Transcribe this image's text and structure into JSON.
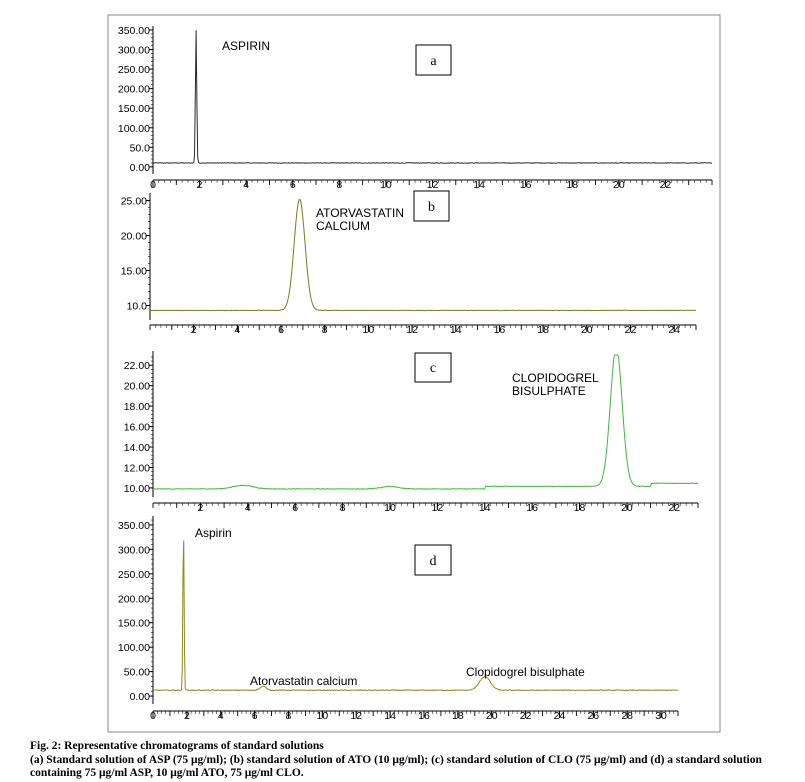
{
  "caption": {
    "title": "Fig. 2: Representative chromatograms of standard solutions",
    "body": "(a) Standard solution of ASP (75 μg/ml); (b) standard solution of ATO (10 μg/ml); (c) standard solution of CLO (75 μg/ml) and (d) a standard solution containing 75 μg/ml ASP, 10 μg/ml ATO, 75 μg/ml CLO."
  },
  "colors": {
    "a": "#2a2a2a",
    "b": "#7a7a22",
    "c": "#3cb83c",
    "d": "#8b8b1a"
  },
  "chart_data": [
    {
      "type": "line",
      "panel_label": "a",
      "annotations": [
        "ASPIRIN"
      ],
      "xlim": [
        0,
        24
      ],
      "ylim": [
        -8,
        350
      ],
      "x_ticks": [
        "0",
        "2",
        "4",
        "6",
        "8",
        "10",
        "12",
        "14",
        "16",
        "18",
        "20",
        "22"
      ],
      "y_ticks": [
        "0.00",
        "50.0",
        "100.00",
        "150.00",
        "200.00",
        "250.00",
        "300.00",
        "350.00"
      ],
      "peaks": [
        {
          "x": 1.85,
          "height": 350,
          "width": 0.04,
          "label": "ASPIRIN"
        }
      ],
      "baseline": 10
    },
    {
      "type": "line",
      "panel_label": "b",
      "annotations": [
        "ATORVASTATIN",
        "CALCIUM"
      ],
      "xlim": [
        0,
        25
      ],
      "ylim": [
        8.5,
        25.5
      ],
      "x_ticks": [
        "2",
        "4",
        "6",
        "8",
        "10",
        "12",
        "14",
        "16",
        "18",
        "20",
        "22",
        "24"
      ],
      "y_ticks": [
        "10.0",
        "15.00",
        "20.00",
        "25.00"
      ],
      "peaks": [
        {
          "x": 6.85,
          "height": 25.2,
          "width": 0.35,
          "label": "ATORVASTATIN CALCIUM"
        }
      ],
      "baseline": 9.3
    },
    {
      "type": "line",
      "panel_label": "c",
      "annotations": [
        "CLOPIDOGREL",
        "BISULPHATE"
      ],
      "xlim": [
        0,
        23
      ],
      "ylim": [
        9.5,
        23
      ],
      "x_ticks": [
        "2",
        "4",
        "6",
        "8",
        "10",
        "12",
        "14",
        "16",
        "18",
        "20",
        "22"
      ],
      "y_ticks": [
        "10.00",
        "12.00",
        "14.00",
        "16.00",
        "18.00",
        "20.00",
        "22.00"
      ],
      "peaks": [
        {
          "x": 19.55,
          "height": 23.5,
          "width": 0.35,
          "label": "CLOPIDOGREL BISULPHATE"
        }
      ],
      "baseline": 9.9
    },
    {
      "type": "line",
      "panel_label": "d",
      "annotations": [
        "Aspirin",
        "Atorvastatin calcium",
        "Clopidogrel bisulphate"
      ],
      "xlim": [
        0,
        31
      ],
      "ylim": [
        -8,
        360
      ],
      "x_ticks": [
        "0",
        "2",
        "4",
        "6",
        "8",
        "10",
        "12",
        "14",
        "16",
        "18",
        "20",
        "22",
        "24",
        "26",
        "28",
        "30"
      ],
      "y_ticks": [
        "0.00",
        "50.00",
        "100.00",
        "150.00",
        "200.00",
        "250.00",
        "300.00",
        "350.00"
      ],
      "peaks": [
        {
          "x": 1.8,
          "height": 350,
          "width": 0.05,
          "label": "Aspirin"
        },
        {
          "x": 6.5,
          "height": 20,
          "width": 0.25,
          "label": "Atorvastatin calcium"
        },
        {
          "x": 19.6,
          "height": 40,
          "width": 0.45,
          "label": "Clopidogrel bisulphate"
        }
      ],
      "baseline": 12
    }
  ]
}
